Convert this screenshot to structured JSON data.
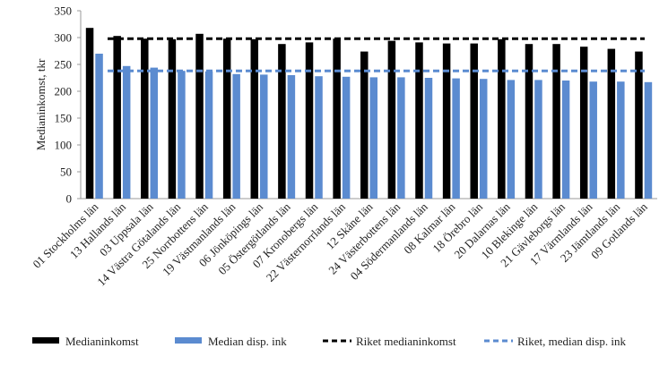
{
  "chart_data": {
    "type": "bar",
    "title": "",
    "xlabel": "",
    "ylabel": "Medianinkomst, tkr",
    "ylim": [
      0,
      350
    ],
    "yticks": [
      0,
      50,
      100,
      150,
      200,
      250,
      300,
      350
    ],
    "grid": false,
    "legend_position": "bottom",
    "categories": [
      "01 Stockholms län",
      "13 Hallands län",
      "03 Uppsala län",
      "14 Västra Götalands län",
      "25 Norrbottens län",
      "19 Västmanlands län",
      "06 Jönköpings län",
      "05 Östergötlands län",
      "07 Kronobergs län",
      "22 Västernorrlands län",
      "12 Skåne län",
      "24 Västerbottens län",
      "04 Södermanlands län",
      "08 Kalmar län",
      "18 Örebro län",
      "20 Dalarnas län",
      "10 Blekinge län",
      "21 Gävleborgs län",
      "17 Värmlands län",
      "23 Jämtlands län",
      "09 Gotlands län"
    ],
    "series": [
      {
        "name": "Medianinkomst",
        "color": "#000000",
        "values": [
          318,
          303,
          298,
          297,
          307,
          298,
          297,
          288,
          291,
          298,
          274,
          294,
          291,
          289,
          289,
          297,
          288,
          288,
          283,
          279,
          274
        ]
      },
      {
        "name": "Median disp. ink",
        "color": "#5b8bd0",
        "values": [
          270,
          247,
          244,
          238,
          237,
          232,
          231,
          230,
          228,
          227,
          226,
          226,
          225,
          224,
          223,
          221,
          221,
          220,
          218,
          218,
          217
        ]
      }
    ],
    "reference_lines": [
      {
        "name": "Riket medianinkomst",
        "value": 298,
        "color": "#000000",
        "style": "dashed"
      },
      {
        "name": "Riket, median disp. ink",
        "value": 238,
        "color": "#5b8bd0",
        "style": "dashed"
      }
    ]
  }
}
